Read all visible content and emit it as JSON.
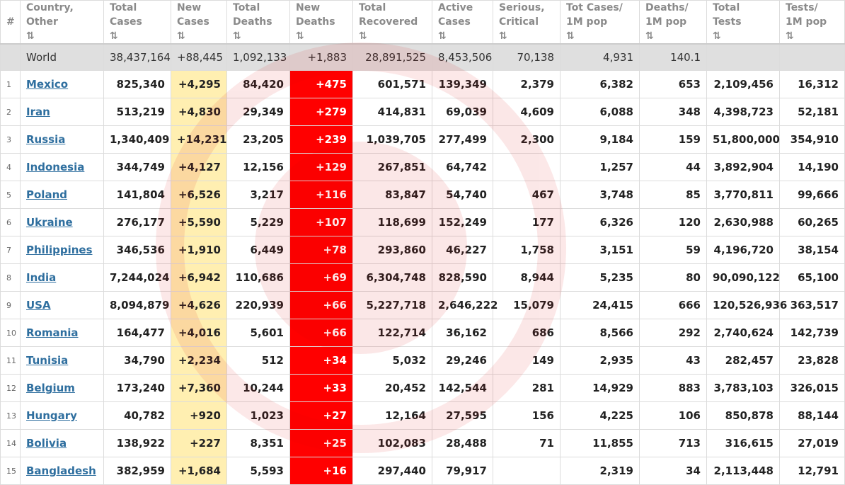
{
  "table": {
    "headers": [
      [
        "#"
      ],
      [
        "Country,",
        "Other"
      ],
      [
        "Total",
        "Cases"
      ],
      [
        "New",
        "Cases"
      ],
      [
        "Total",
        "Deaths"
      ],
      [
        "New",
        "Deaths"
      ],
      [
        "Total",
        "Recovered"
      ],
      [
        "Active",
        "Cases"
      ],
      [
        "Serious,",
        "Critical"
      ],
      [
        "Tot Cases/",
        "1M pop"
      ],
      [
        "Deaths/",
        "1M pop"
      ],
      [
        "Total",
        "Tests"
      ],
      [
        "Tests/",
        "1M pop"
      ]
    ],
    "world": [
      null,
      "World",
      "38,437,164",
      "+88,445",
      "1,092,133",
      "+1,883",
      "28,891,525",
      "8,453,506",
      "70,138",
      "4,931",
      "140.1",
      null,
      null
    ],
    "rows": [
      [
        "1",
        "Mexico",
        "825,340",
        "+4,295",
        "84,420",
        "+475",
        "601,571",
        "139,349",
        "2,379",
        "6,382",
        "653",
        "2,109,456",
        "16,312"
      ],
      [
        "2",
        "Iran",
        "513,219",
        "+4,830",
        "29,349",
        "+279",
        "414,831",
        "69,039",
        "4,609",
        "6,088",
        "348",
        "4,398,723",
        "52,181"
      ],
      [
        "3",
        "Russia",
        "1,340,409",
        "+14,231",
        "23,205",
        "+239",
        "1,039,705",
        "277,499",
        "2,300",
        "9,184",
        "159",
        "51,800,000",
        "354,910"
      ],
      [
        "4",
        "Indonesia",
        "344,749",
        "+4,127",
        "12,156",
        "+129",
        "267,851",
        "64,742",
        null,
        "1,257",
        "44",
        "3,892,904",
        "14,190"
      ],
      [
        "5",
        "Poland",
        "141,804",
        "+6,526",
        "3,217",
        "+116",
        "83,847",
        "54,740",
        "467",
        "3,748",
        "85",
        "3,770,811",
        "99,666"
      ],
      [
        "6",
        "Ukraine",
        "276,177",
        "+5,590",
        "5,229",
        "+107",
        "118,699",
        "152,249",
        "177",
        "6,326",
        "120",
        "2,630,988",
        "60,265"
      ],
      [
        "7",
        "Philippines",
        "346,536",
        "+1,910",
        "6,449",
        "+78",
        "293,860",
        "46,227",
        "1,758",
        "3,151",
        "59",
        "4,196,720",
        "38,154"
      ],
      [
        "8",
        "India",
        "7,244,024",
        "+6,942",
        "110,686",
        "+69",
        "6,304,748",
        "828,590",
        "8,944",
        "5,235",
        "80",
        "90,090,122",
        "65,100"
      ],
      [
        "9",
        "USA",
        "8,094,879",
        "+4,626",
        "220,939",
        "+66",
        "5,227,718",
        "2,646,222",
        "15,079",
        "24,415",
        "666",
        "120,526,936",
        "363,517"
      ],
      [
        "10",
        "Romania",
        "164,477",
        "+4,016",
        "5,601",
        "+66",
        "122,714",
        "36,162",
        "686",
        "8,566",
        "292",
        "2,740,624",
        "142,739"
      ],
      [
        "11",
        "Tunisia",
        "34,790",
        "+2,234",
        "512",
        "+34",
        "5,032",
        "29,246",
        "149",
        "2,935",
        "43",
        "282,457",
        "23,828"
      ],
      [
        "12",
        "Belgium",
        "173,240",
        "+7,360",
        "10,244",
        "+33",
        "20,452",
        "142,544",
        "281",
        "14,929",
        "883",
        "3,783,103",
        "326,015"
      ],
      [
        "13",
        "Hungary",
        "40,782",
        "+920",
        "1,023",
        "+27",
        "12,164",
        "27,595",
        "156",
        "4,225",
        "106",
        "850,878",
        "88,144"
      ],
      [
        "14",
        "Bolivia",
        "138,922",
        "+227",
        "8,351",
        "+25",
        "102,083",
        "28,488",
        "71",
        "11,855",
        "713",
        "316,615",
        "27,019"
      ],
      [
        "15",
        "Bangladesh",
        "382,959",
        "+1,684",
        "5,593",
        "+16",
        "297,440",
        "79,917",
        null,
        "2,319",
        "34",
        "2,113,448",
        "12,791"
      ]
    ]
  }
}
